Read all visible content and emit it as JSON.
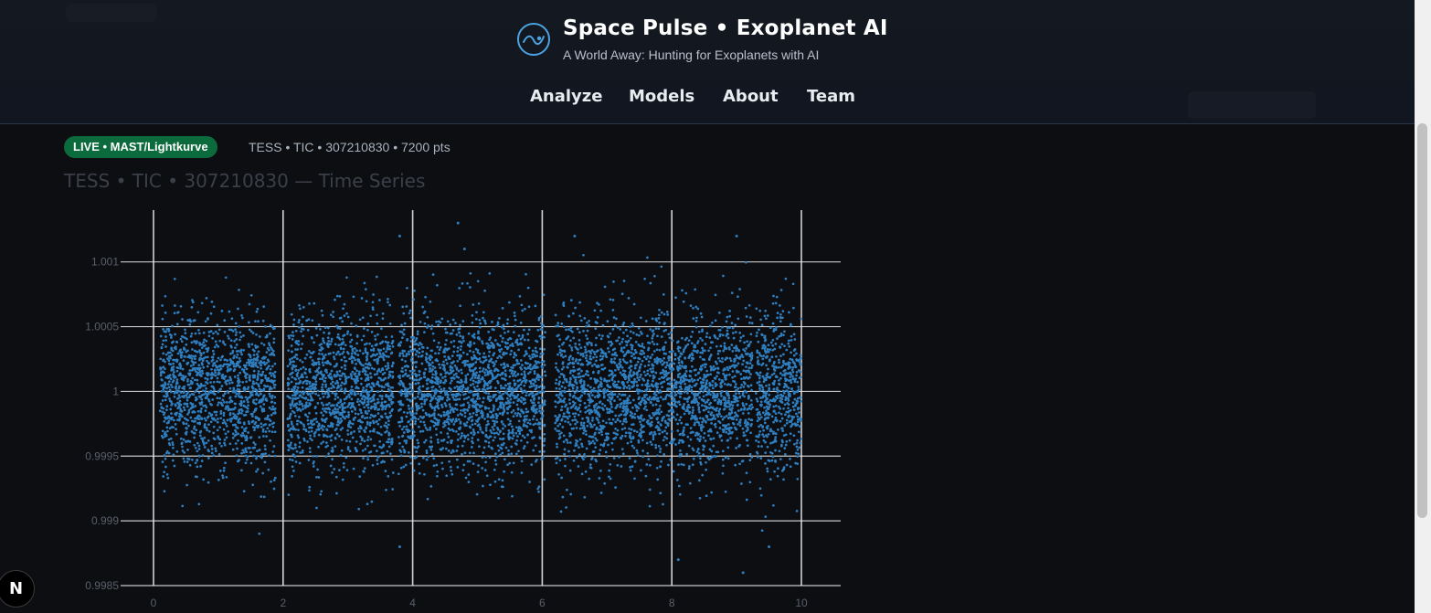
{
  "header": {
    "title": "Space Pulse • Exoplanet AI",
    "subtitle": "A World Away: Hunting for Exoplanets with AI",
    "nav": [
      {
        "label": "Analyze"
      },
      {
        "label": "Models"
      },
      {
        "label": "About"
      },
      {
        "label": "Team"
      }
    ]
  },
  "status": {
    "badge": "LIVE • MAST/Lightkurve",
    "meta": "TESS • TIC • 307210830 • 7200 pts"
  },
  "devtools": {
    "label": "N"
  },
  "chart_data": {
    "type": "scatter",
    "title": "TESS • TIC • 307210830 — Time Series",
    "xlabel": "",
    "ylabel": "",
    "xlim": [
      0,
      10
    ],
    "ylim": [
      0.9985,
      1.0014
    ],
    "x_ticks": [
      "0",
      "2",
      "4",
      "6",
      "8",
      "10"
    ],
    "y_ticks": [
      "0.9985",
      "0.999",
      "0.9995",
      "1",
      "1.0005",
      "1.001"
    ],
    "n_points": 7200,
    "grid": true,
    "marker_color": "#2f7fc0",
    "series": [
      {
        "x_range": [
          0.1,
          10.0
        ],
        "center": 1.0,
        "typical_scatter": 0.0004,
        "gaps_x": [
          [
            1.88,
            2.07
          ],
          [
            3.7,
            3.78
          ],
          [
            6.05,
            6.2
          ],
          [
            9.25,
            9.3
          ]
        ],
        "outliers": [
          {
            "x": 3.8,
            "y": 1.0012
          },
          {
            "x": 4.7,
            "y": 1.0013
          },
          {
            "x": 4.8,
            "y": 1.0011
          },
          {
            "x": 6.5,
            "y": 1.0012
          },
          {
            "x": 9.0,
            "y": 1.0012
          },
          {
            "x": 3.8,
            "y": 0.9988
          },
          {
            "x": 9.5,
            "y": 0.9988
          },
          {
            "x": 8.1,
            "y": 0.9987
          },
          {
            "x": 9.1,
            "y": 0.9986
          }
        ]
      }
    ]
  },
  "colors": {
    "background": "#0d0e12",
    "header_bg": "#131821",
    "badge_bg": "#0c6b3c",
    "grid": "#e8e8e8",
    "points": "#2f7fc0"
  }
}
